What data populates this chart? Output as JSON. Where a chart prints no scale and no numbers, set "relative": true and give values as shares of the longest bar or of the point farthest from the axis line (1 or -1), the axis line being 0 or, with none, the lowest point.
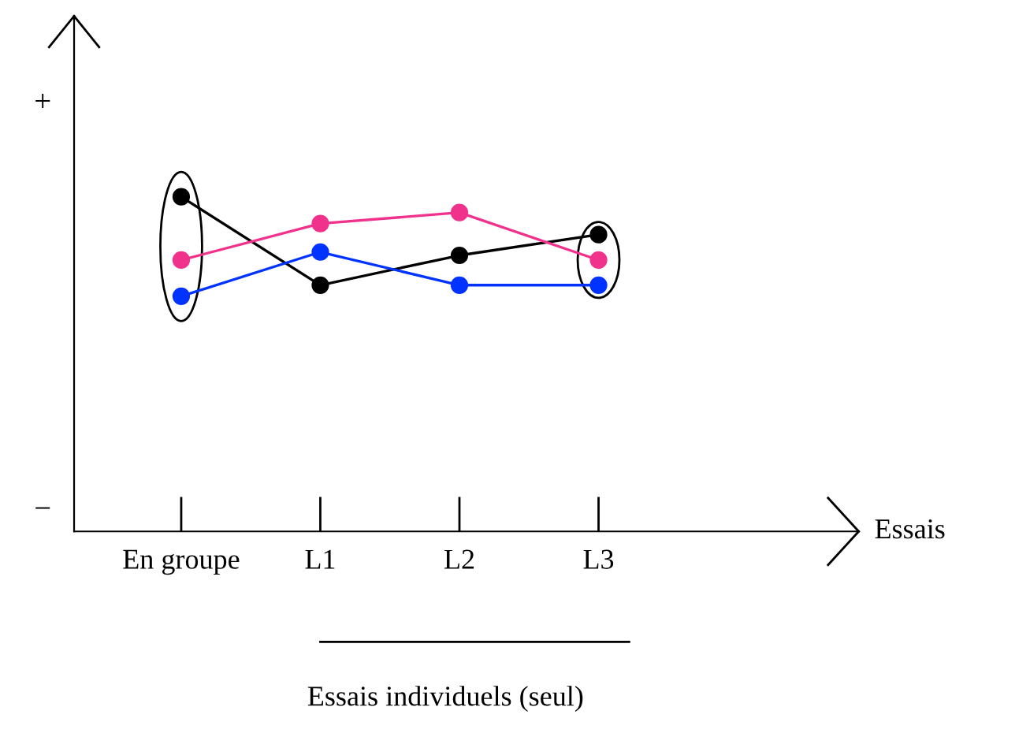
{
  "chart_data": {
    "type": "line",
    "relative": true,
    "categories": [
      "En groupe",
      "L1",
      "L2",
      "L3"
    ],
    "annotations": [
      "Essais",
      "+",
      "−",
      "Essais individuels (seul)"
    ],
    "series": [
      {
        "color": "#000000",
        "values": [
          1,
          0.736,
          0.825,
          0.887
        ]
      },
      {
        "color": "#f0328c",
        "values": [
          0.811,
          0.92,
          0.953,
          0.811
        ]
      },
      {
        "color": "#0033ff",
        "values": [
          0.703,
          0.835,
          0.736,
          0.736
        ]
      }
    ],
    "marker": "circle",
    "line_style": "solid",
    "grid": false,
    "legend": false
  }
}
